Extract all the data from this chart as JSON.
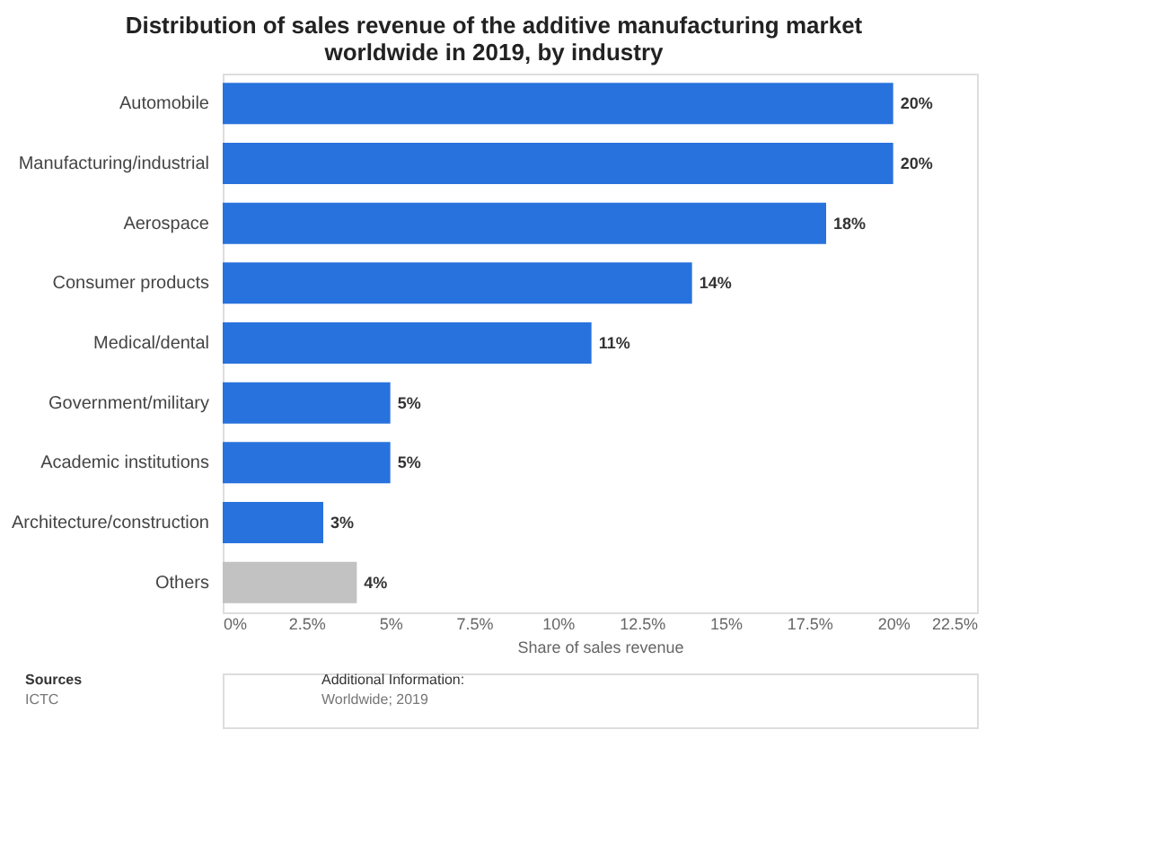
{
  "chart_data": {
    "type": "bar",
    "orientation": "horizontal",
    "title": "Distribution of sales revenue of the additive manufacturing market worldwide in 2019, by industry",
    "categories": [
      "Automobile",
      "Manufacturing/industrial",
      "Aerospace",
      "Consumer products",
      "Medical/dental",
      "Government/military",
      "Academic institutions",
      "Architecture/construction",
      "Others"
    ],
    "values": [
      20,
      20,
      18,
      14,
      11,
      5,
      5,
      3,
      4
    ],
    "colors": [
      "#2872dd",
      "#2872dd",
      "#2872dd",
      "#2872dd",
      "#2872dd",
      "#2872dd",
      "#2872dd",
      "#2872dd",
      "#c2c2c2"
    ],
    "value_labels": [
      "20%",
      "20%",
      "18%",
      "14%",
      "11%",
      "5%",
      "5%",
      "3%",
      "4%"
    ],
    "xlabel": "Share of sales revenue",
    "xlim": [
      0,
      22.5
    ],
    "xticks": [
      {
        "value": 0,
        "label": "0%"
      },
      {
        "value": 2.5,
        "label": "2.5%"
      },
      {
        "value": 5,
        "label": "5%"
      },
      {
        "value": 7.5,
        "label": "7.5%"
      },
      {
        "value": 10,
        "label": "10%"
      },
      {
        "value": 12.5,
        "label": "12.5%"
      },
      {
        "value": 15,
        "label": "15%"
      },
      {
        "value": 17.5,
        "label": "17.5%"
      },
      {
        "value": 20,
        "label": "20%"
      },
      {
        "value": 22.5,
        "label": "22.5%"
      }
    ],
    "grid": false,
    "annotations": [
      "Sources",
      "ICTC",
      "Additional Information:",
      "Worldwide; 2019"
    ]
  }
}
